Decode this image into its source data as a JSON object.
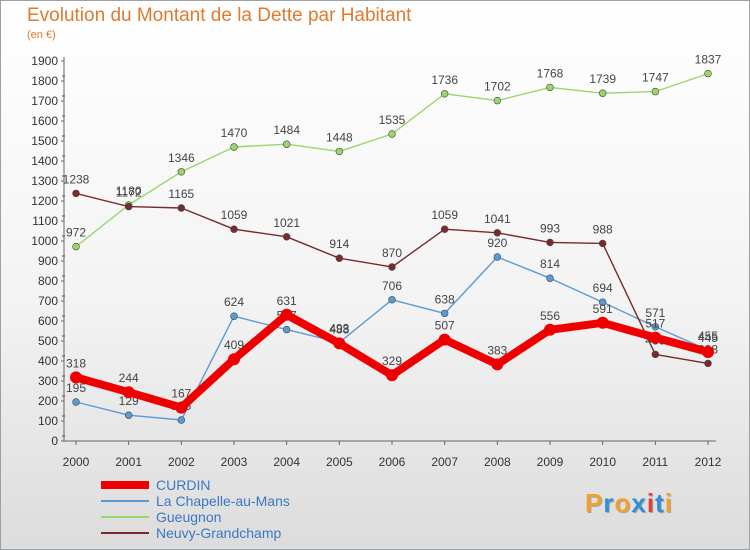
{
  "title": "Evolution du Montant de la Dette par Habitant",
  "subtitle": "(en €)",
  "logo": [
    "P",
    "r",
    "o",
    "x",
    "i",
    "t",
    "i"
  ],
  "logo_colors": [
    "#f0a030",
    "#2f8fd8",
    "#f0a030",
    "#2f8fd8",
    "#e04040",
    "#2f8fd8",
    "#f0a030"
  ],
  "chart_data": {
    "type": "line",
    "categories": [
      "2000",
      "2001",
      "2002",
      "2003",
      "2004",
      "2005",
      "2006",
      "2007",
      "2008",
      "2009",
      "2010",
      "2011",
      "2012"
    ],
    "ylim": [
      0,
      1900
    ],
    "yticks": [
      0,
      100,
      200,
      300,
      400,
      500,
      600,
      700,
      800,
      900,
      1000,
      1100,
      1200,
      1300,
      1400,
      1500,
      1600,
      1700,
      1800,
      1900
    ],
    "grid": false,
    "legend_placement": "bottom-left",
    "series": [
      {
        "name": "CURDIN",
        "color": "#ee0000",
        "values": [
          318,
          244,
          167,
          409,
          631,
          488,
          329,
          507,
          383,
          556,
          591,
          517,
          445
        ]
      },
      {
        "name": "La Chapelle-au-Mans",
        "color": "#5b9bd5",
        "values": [
          195,
          129,
          105,
          624,
          557,
          493,
          706,
          638,
          920,
          814,
          694,
          571,
          455
        ]
      },
      {
        "name": "Gueugnon",
        "color": "#99d66b",
        "values": [
          972,
          1180,
          1346,
          1470,
          1484,
          1448,
          1535,
          1736,
          1702,
          1768,
          1739,
          1747,
          1837
        ]
      },
      {
        "name": "Neuvy-Grandchamp",
        "color": "#7a2a2a",
        "values": [
          1238,
          1172,
          1165,
          1059,
          1021,
          914,
          870,
          1059,
          1041,
          993,
          988,
          433,
          388
        ]
      }
    ]
  }
}
